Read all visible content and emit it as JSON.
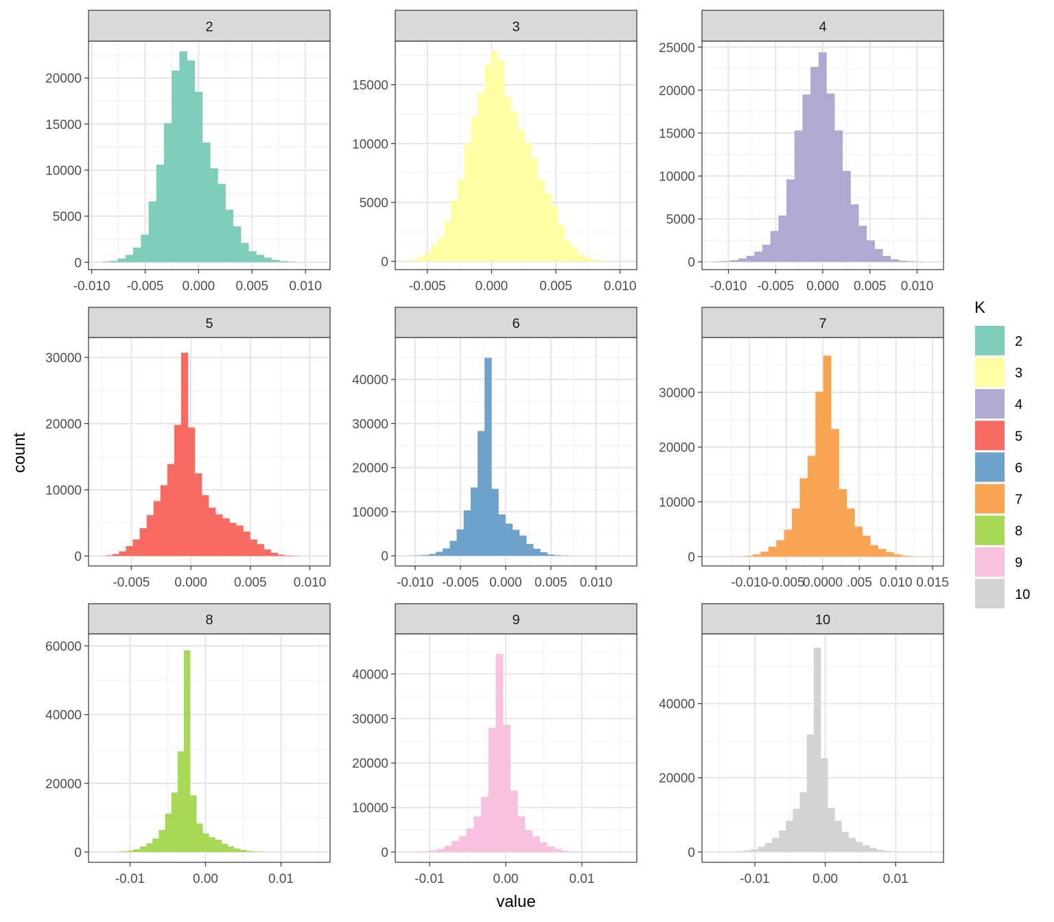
{
  "chart_data": {
    "type": "bar",
    "subtype": "faceted-histogram",
    "xlabel": "value",
    "ylabel": "count",
    "legend": {
      "title": "K",
      "placement": "right",
      "entries": [
        {
          "label": "2",
          "color": "#7FCDBB"
        },
        {
          "label": "3",
          "color": "#FFFFA3"
        },
        {
          "label": "4",
          "color": "#B0AAD2"
        },
        {
          "label": "5",
          "color": "#F76B62"
        },
        {
          "label": "6",
          "color": "#6FA2CA"
        },
        {
          "label": "7",
          "color": "#F9A452"
        },
        {
          "label": "8",
          "color": "#A6D856"
        },
        {
          "label": "9",
          "color": "#F8C1E0"
        },
        {
          "label": "10",
          "color": "#D3D3D3"
        }
      ]
    },
    "panels": [
      {
        "strip": "2",
        "color": "#7FCDBB",
        "xlim": [
          -0.0103,
          0.0123
        ],
        "ylim": [
          -800,
          24000
        ],
        "x_ticks": [
          -0.01,
          -0.005,
          0.0,
          0.005,
          0.01
        ],
        "x_tick_labels": [
          "-0.010",
          "-0.005",
          "0.000",
          "0.005",
          "0.010"
        ],
        "y_ticks": [
          0,
          5000,
          10000,
          15000,
          20000
        ],
        "y_tick_labels": [
          "0",
          "5000",
          "10000",
          "15000",
          "20000"
        ],
        "bin_start": -0.009,
        "bin_width": 0.00072,
        "counts": [
          80,
          150,
          400,
          800,
          1600,
          3000,
          6600,
          10600,
          15100,
          20800,
          22900,
          21900,
          18500,
          13000,
          10200,
          8500,
          5700,
          3900,
          2100,
          1200,
          800,
          500,
          250,
          120,
          60
        ]
      },
      {
        "strip": "3",
        "color": "#FFFFA3",
        "xlim": [
          -0.0075,
          0.0113
        ],
        "ylim": [
          -700,
          18700
        ],
        "x_ticks": [
          -0.005,
          0.0,
          0.005,
          0.01
        ],
        "x_tick_labels": [
          "-0.005",
          "0.000",
          "0.005",
          "0.010"
        ],
        "y_ticks": [
          0,
          5000,
          10000,
          15000
        ],
        "y_tick_labels": [
          "0",
          "5000",
          "10000",
          "15000"
        ],
        "bin_start": -0.0068,
        "bin_width": 0.00052,
        "counts": [
          50,
          150,
          400,
          700,
          1400,
          2000,
          3400,
          5200,
          7000,
          10000,
          12300,
          14300,
          16700,
          17900,
          17100,
          14000,
          12700,
          11200,
          10100,
          8800,
          7000,
          5800,
          4700,
          3100,
          1800,
          1200,
          600,
          300,
          150,
          80,
          40
        ]
      },
      {
        "strip": "4",
        "color": "#B0AAD2",
        "xlim": [
          -0.0128,
          0.0128
        ],
        "ylim": [
          -900,
          25700
        ],
        "x_ticks": [
          -0.01,
          -0.005,
          0.0,
          0.005,
          0.01
        ],
        "x_tick_labels": [
          "-0.010",
          "-0.005",
          "0.000",
          "0.005",
          "0.010"
        ],
        "y_ticks": [
          0,
          5000,
          10000,
          15000,
          20000,
          25000
        ],
        "y_tick_labels": [
          "0",
          "5000",
          "10000",
          "15000",
          "20000",
          "25000"
        ],
        "bin_start": -0.0115,
        "bin_width": 0.00085,
        "counts": [
          50,
          100,
          200,
          400,
          700,
          1200,
          2000,
          3600,
          5400,
          9600,
          15300,
          19500,
          22700,
          24400,
          19600,
          15300,
          10600,
          6700,
          4200,
          2500,
          1500,
          700,
          300,
          150,
          80,
          40
        ]
      },
      {
        "strip": "5",
        "color": "#F76B62",
        "xlim": [
          -0.0086,
          0.0117
        ],
        "ylim": [
          -1500,
          33000
        ],
        "x_ticks": [
          -0.005,
          0.0,
          0.005,
          0.01
        ],
        "x_tick_labels": [
          "-0.005",
          "0.000",
          "0.005",
          "0.010"
        ],
        "y_ticks": [
          0,
          10000,
          20000,
          30000
        ],
        "y_tick_labels": [
          "0",
          "10000",
          "20000",
          "30000"
        ],
        "bin_start": -0.0072,
        "bin_width": 0.00058,
        "counts": [
          100,
          300,
          700,
          1500,
          2500,
          4200,
          6200,
          8300,
          10700,
          13900,
          19800,
          30700,
          19400,
          12500,
          9200,
          7300,
          6300,
          5700,
          5000,
          4600,
          3700,
          2500,
          1800,
          1000,
          500,
          200,
          80,
          40
        ]
      },
      {
        "strip": "6",
        "color": "#6FA2CA",
        "xlim": [
          -0.0122,
          0.0145
        ],
        "ylim": [
          -2300,
          49500
        ],
        "x_ticks": [
          -0.01,
          -0.005,
          0.0,
          0.005,
          0.01
        ],
        "x_tick_labels": [
          "-0.010",
          "-0.005",
          "0.000",
          "0.005",
          "0.010"
        ],
        "y_ticks": [
          0,
          10000,
          20000,
          30000,
          40000
        ],
        "y_tick_labels": [
          "0",
          "10000",
          "20000",
          "30000",
          "40000"
        ],
        "bin_start": -0.0108,
        "bin_width": 0.00077,
        "counts": [
          50,
          100,
          200,
          400,
          900,
          1700,
          3400,
          6000,
          10300,
          15500,
          28300,
          44900,
          15200,
          9400,
          7300,
          5900,
          4600,
          2700,
          1600,
          800,
          300,
          150,
          60,
          30
        ]
      },
      {
        "strip": "7",
        "color": "#F9A452",
        "xlim": [
          -0.0165,
          0.0165
        ],
        "ylim": [
          -1700,
          40000
        ],
        "x_ticks": [
          -0.01,
          -0.005,
          0.0,
          0.005,
          0.01,
          0.015
        ],
        "x_tick_labels": [
          "-0.010",
          "-0.005",
          "0.0000",
          ".005",
          "0.010",
          "0.015"
        ],
        "y_ticks": [
          0,
          10000,
          20000,
          30000
        ],
        "y_tick_labels": [
          "0",
          "10000",
          "20000",
          "30000"
        ],
        "bin_start": -0.0117,
        "bin_width": 0.00107,
        "counts": [
          50,
          150,
          400,
          900,
          1800,
          3000,
          4900,
          8800,
          14300,
          18400,
          30100,
          36700,
          23300,
          12300,
          8800,
          5500,
          3800,
          2100,
          1400,
          800,
          400,
          200,
          80,
          40
        ]
      },
      {
        "strip": "8",
        "color": "#A6D856",
        "xlim": [
          -0.0155,
          0.0165
        ],
        "ylim": [
          -3000,
          63500
        ],
        "x_ticks": [
          -0.01,
          0.0,
          0.01
        ],
        "x_tick_labels": [
          "-0.01",
          "0.00",
          "0.01"
        ],
        "y_ticks": [
          0,
          20000,
          40000,
          60000
        ],
        "y_tick_labels": [
          "0",
          "20000",
          "40000",
          "60000"
        ],
        "bin_start": -0.012,
        "bin_width": 0.00083,
        "counts": [
          100,
          200,
          400,
          800,
          1600,
          2500,
          3900,
          6400,
          11200,
          17300,
          29300,
          58700,
          16500,
          8300,
          5400,
          4300,
          3600,
          2400,
          1600,
          1000,
          600,
          300,
          150,
          80,
          40,
          20,
          10,
          5
        ]
      },
      {
        "strip": "9",
        "color": "#F8C1E0",
        "xlim": [
          -0.0145,
          0.0172
        ],
        "ylim": [
          -2300,
          49000
        ],
        "x_ticks": [
          -0.01,
          0.0,
          0.01
        ],
        "x_tick_labels": [
          "-0.01",
          "0.00",
          "0.01"
        ],
        "y_ticks": [
          0,
          10000,
          20000,
          30000,
          40000
        ],
        "y_tick_labels": [
          "0",
          "10000",
          "20000",
          "30000",
          "40000"
        ],
        "bin_start": -0.0138,
        "bin_width": 0.00096,
        "counts": [
          30,
          50,
          100,
          200,
          400,
          700,
          1400,
          2500,
          3600,
          5300,
          8000,
          12400,
          27900,
          44500,
          28600,
          13800,
          8000,
          4900,
          3500,
          2200,
          1300,
          700,
          300,
          150,
          80,
          40,
          20,
          10
        ]
      },
      {
        "strip": "10",
        "color": "#D3D3D3",
        "xlim": [
          -0.0175,
          0.0168
        ],
        "ylim": [
          -2800,
          58800
        ],
        "x_ticks": [
          -0.01,
          0.0,
          0.01
        ],
        "x_tick_labels": [
          "-0.01",
          "0.00",
          "0.01"
        ],
        "y_ticks": [
          0,
          20000,
          40000
        ],
        "y_tick_labels": [
          "0",
          "20000",
          "40000"
        ],
        "bin_start": -0.0145,
        "bin_width": 0.00099,
        "counts": [
          50,
          100,
          200,
          400,
          700,
          1400,
          2400,
          3800,
          5800,
          8400,
          11600,
          16100,
          31700,
          55100,
          25300,
          11900,
          8400,
          5400,
          3800,
          2700,
          1800,
          1100,
          600,
          300,
          150,
          80,
          40
        ]
      }
    ]
  }
}
